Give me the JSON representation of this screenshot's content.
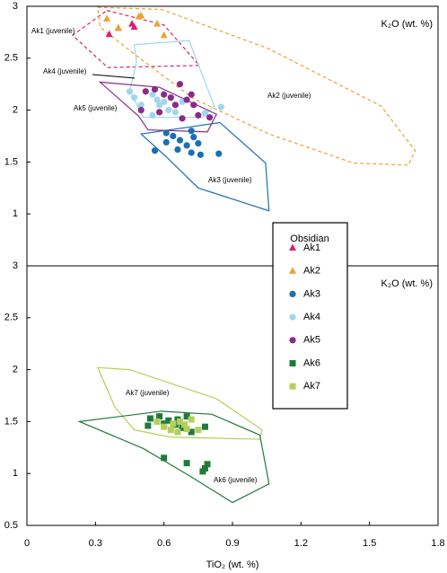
{
  "chart_data": [
    {
      "type": "scatter",
      "ylabel": "K₂O (wt. %)",
      "xlim": [
        0,
        1.8
      ],
      "ylim": [
        0.5,
        3
      ],
      "yticks": [
        1,
        1.5,
        2,
        2.5,
        3
      ],
      "legend_title": "Obsidian",
      "series": [
        {
          "name": "Ak1",
          "color": "#d6246e",
          "marker": "triangle",
          "x": [
            0.36,
            0.4,
            0.46,
            0.47
          ],
          "y": [
            2.73,
            2.79,
            2.83,
            2.8
          ]
        },
        {
          "name": "Ak2",
          "color": "#f0a030",
          "marker": "triangle",
          "x": [
            0.35,
            0.4,
            0.49,
            0.5,
            0.57,
            0.6
          ],
          "y": [
            2.88,
            2.79,
            2.9,
            2.91,
            2.83,
            2.72
          ]
        },
        {
          "name": "Ak3",
          "color": "#1a6fb5",
          "marker": "circle",
          "x": [
            0.56,
            0.61,
            0.64,
            0.67,
            0.72,
            0.73,
            0.75,
            0.7,
            0.66,
            0.72,
            0.76,
            0.84,
            0.61
          ],
          "y": [
            1.61,
            1.69,
            1.75,
            1.71,
            1.8,
            1.74,
            1.68,
            1.66,
            1.62,
            1.59,
            1.57,
            1.58,
            1.78
          ]
        },
        {
          "name": "Ak4",
          "color": "#9fd6ef",
          "marker": "circle",
          "x": [
            0.45,
            0.47,
            0.5,
            0.55,
            0.57,
            0.58,
            0.6,
            0.62,
            0.65,
            0.55,
            0.78,
            0.85,
            0.68
          ],
          "y": [
            2.18,
            2.12,
            2.05,
            2.15,
            2.1,
            2.05,
            2.08,
            2.0,
            1.98,
            1.95,
            1.97,
            2.03,
            2.08
          ]
        },
        {
          "name": "Ak5",
          "color": "#8b2a8a",
          "marker": "circle",
          "x": [
            0.56,
            0.6,
            0.63,
            0.67,
            0.7,
            0.73,
            0.75,
            0.8,
            0.58,
            0.5,
            0.68,
            0.72,
            0.52,
            0.65
          ],
          "y": [
            2.2,
            2.15,
            2.12,
            2.25,
            2.1,
            2.05,
            1.95,
            1.93,
            1.98,
            2.0,
            1.92,
            2.15,
            2.18,
            2.05
          ]
        }
      ],
      "fields": [
        {
          "name": "Ak1 (juvenile)",
          "color": "#d6246e",
          "dashed": true,
          "x": [
            0.35,
            0.6,
            0.755,
            0.354,
            0.2
          ],
          "y": [
            2.96,
            2.82,
            2.43,
            2.41,
            2.72
          ]
        },
        {
          "name": "Ak2 (juvenile)",
          "color": "#f0a030",
          "dashed": true,
          "x": [
            0.31,
            0.59,
            1.06,
            1.55,
            1.7,
            1.67,
            1.43,
            1.06,
            0.73,
            0.47,
            0.32
          ],
          "y": [
            2.99,
            2.97,
            2.59,
            2.04,
            1.61,
            1.47,
            1.49,
            1.77,
            2.11,
            2.54,
            2.8
          ]
        },
        {
          "name": "Ak3 (juvenile)",
          "color": "#1a6fb5",
          "dashed": false,
          "x": [
            0.5,
            0.845,
            1.045,
            1.06,
            0.75,
            0.61
          ],
          "y": [
            1.77,
            1.88,
            1.49,
            1.03,
            1.25,
            1.55
          ]
        },
        {
          "name": "Ak4 (juvenile)",
          "color": "#9fd6ef",
          "dashed": false,
          "x": [
            0.47,
            0.71,
            0.82,
            0.77,
            0.51,
            0.45,
            0.48
          ],
          "y": [
            2.63,
            2.67,
            2.04,
            1.93,
            1.93,
            2.19,
            2.46
          ]
        },
        {
          "name": "Ak5 (juvenile)",
          "color": "#8b2a8a",
          "dashed": false,
          "x": [
            0.32,
            0.58,
            0.83,
            0.79,
            0.53,
            0.49
          ],
          "y": [
            2.27,
            2.22,
            1.96,
            1.79,
            1.81,
            1.94
          ]
        }
      ]
    },
    {
      "type": "scatter",
      "ylabel": "K₂O (wt. %)",
      "xlabel": "TiO₂ (wt. %)",
      "xlim": [
        0,
        1.8
      ],
      "xticks": [
        0,
        0.3,
        0.6,
        0.9,
        1.2,
        1.5,
        1.8
      ],
      "ylim": [
        0.5,
        3
      ],
      "yticks": [
        0.5,
        1,
        1.5,
        2,
        2.5,
        3
      ],
      "series": [
        {
          "name": "Ak6",
          "color": "#1f7a3a",
          "marker": "square",
          "x": [
            0.54,
            0.58,
            0.6,
            0.62,
            0.65,
            0.68,
            0.7,
            0.72,
            0.78,
            0.53,
            0.6,
            0.7,
            0.77,
            0.78,
            0.79,
            0.66
          ],
          "y": [
            1.53,
            1.55,
            1.48,
            1.51,
            1.47,
            1.44,
            1.55,
            1.4,
            1.45,
            1.46,
            1.15,
            1.1,
            1.02,
            1.05,
            1.09,
            1.52
          ]
        },
        {
          "name": "Ak7",
          "color": "#b5cf5a",
          "marker": "square",
          "x": [
            0.57,
            0.6,
            0.63,
            0.67,
            0.69,
            0.7,
            0.72,
            0.75,
            0.66,
            0.64
          ],
          "y": [
            1.5,
            1.45,
            1.42,
            1.5,
            1.47,
            1.43,
            1.52,
            1.42,
            1.4,
            1.48
          ]
        }
      ],
      "fields": [
        {
          "name": "Ak7 (juvenile)",
          "color": "#b5cf5a",
          "dashed": false,
          "x": [
            0.31,
            0.45,
            0.83,
            1.03,
            1.02,
            0.63,
            0.47,
            0.385
          ],
          "y": [
            2.02,
            2.0,
            1.72,
            1.42,
            1.33,
            1.35,
            1.42,
            1.64
          ]
        },
        {
          "name": "Ak6 (juvenile)",
          "color": "#1f7a3a",
          "dashed": false,
          "x": [
            0.23,
            0.59,
            0.81,
            1.02,
            1.06,
            0.9,
            0.71,
            0.51
          ],
          "y": [
            1.5,
            1.6,
            1.57,
            1.37,
            0.9,
            0.72,
            0.98,
            1.24
          ]
        }
      ]
    }
  ]
}
